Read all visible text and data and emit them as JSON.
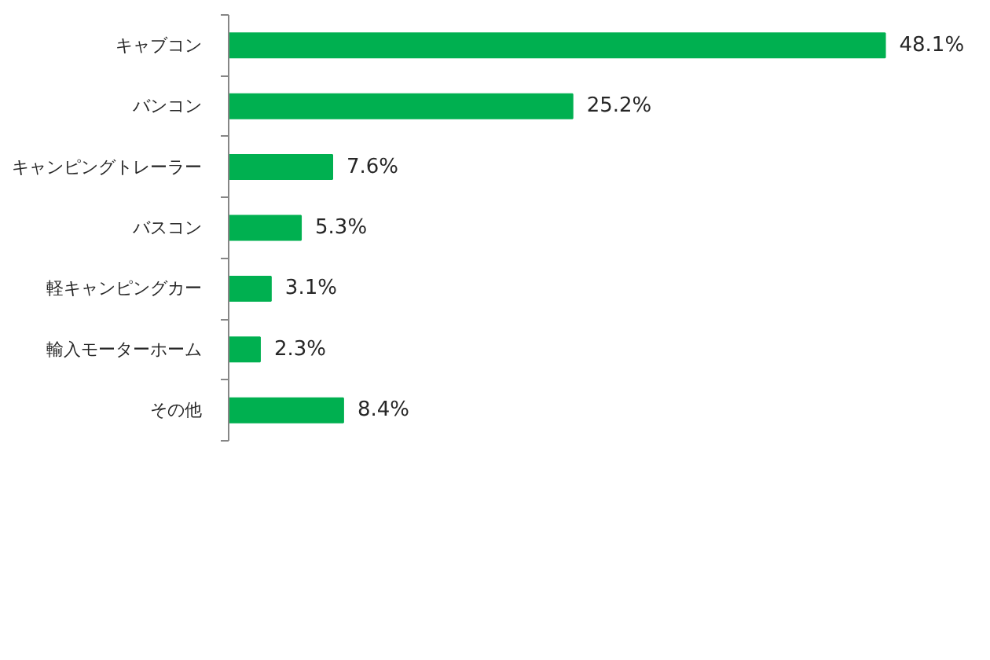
{
  "chart_data": {
    "type": "bar",
    "orientation": "horizontal",
    "categories": [
      "キャブコン",
      "バンコン",
      "キャンピングトレーラー",
      "バスコン",
      "軽キャンピングカー",
      "輸入モーターホーム",
      "その他"
    ],
    "values": [
      48.1,
      25.2,
      7.6,
      5.3,
      3.1,
      2.3,
      8.4
    ],
    "value_labels": [
      "48.1%",
      "25.2%",
      "7.6%",
      "5.3%",
      "3.1%",
      "2.3%",
      "8.4%"
    ],
    "color": "#00b050"
  }
}
